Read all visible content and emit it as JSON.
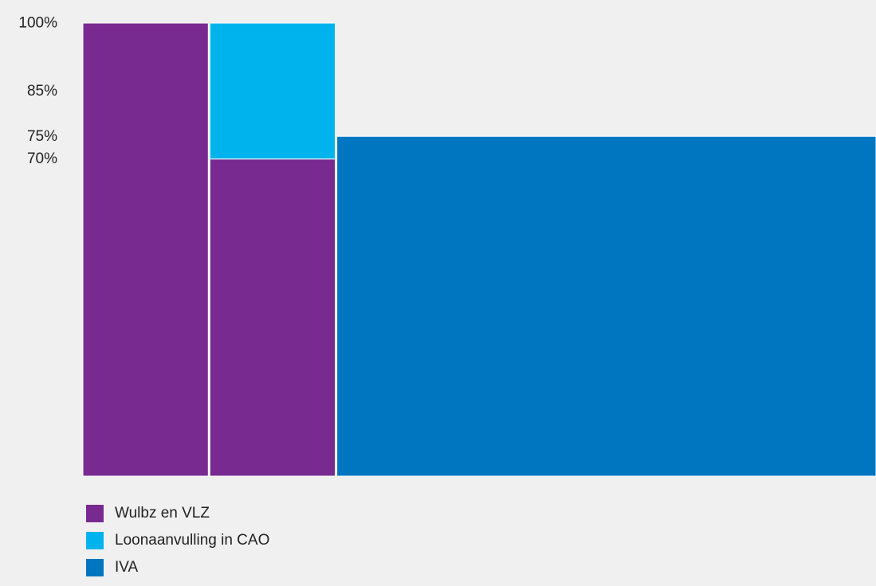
{
  "chart_data": {
    "type": "bar",
    "title": "",
    "xlabel": "",
    "ylabel": "",
    "ylim": [
      0,
      100
    ],
    "y_ticks": [
      {
        "value": 100,
        "label": "100%"
      },
      {
        "value": 85,
        "label": "85%"
      },
      {
        "value": 75,
        "label": "75%"
      },
      {
        "value": 70,
        "label": "70%"
      }
    ],
    "stacking": "stacked",
    "categories": [
      "",
      "",
      ""
    ],
    "series": [
      {
        "name": "Wulbz en VLZ",
        "color": "#782a91",
        "values": [
          100,
          70,
          0
        ]
      },
      {
        "name": "Loonaanvulling in CAO",
        "color": "#00b3ed",
        "values": [
          0,
          30,
          0
        ]
      },
      {
        "name": "IVA",
        "color": "#0076c1",
        "values": [
          0,
          0,
          75
        ]
      }
    ],
    "relative_widths": [
      1,
      1,
      4.3
    ],
    "grid": false,
    "legend_position": "bottom-left"
  },
  "legend": {
    "items": [
      {
        "label": "Wulbz en VLZ",
        "color": "#782a91"
      },
      {
        "label": "Loonaanvulling in CAO",
        "color": "#00b3ed"
      },
      {
        "label": "IVA",
        "color": "#0076c1"
      }
    ]
  }
}
